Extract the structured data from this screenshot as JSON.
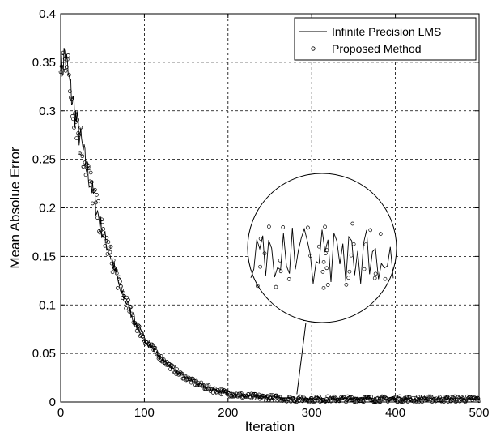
{
  "chart_data": {
    "type": "line",
    "title": "",
    "xlabel": "Iteration",
    "ylabel": "Mean Absolue Error",
    "xlim": [
      0,
      500
    ],
    "ylim": [
      0,
      0.4
    ],
    "xticks": [
      "0",
      "100",
      "200",
      "300",
      "400",
      "500"
    ],
    "yticks": [
      "0",
      "0.05",
      "0.1",
      "0.15",
      "0.2",
      "0.25",
      "0.3",
      "0.35",
      "0.4"
    ],
    "grid": true,
    "legend_position": "top-right",
    "series": [
      {
        "name": "Infinite Precision LMS",
        "marker": "line",
        "color": "#000000",
        "x": [
          0,
          5,
          10,
          20,
          30,
          40,
          50,
          60,
          70,
          80,
          90,
          100,
          120,
          140,
          160,
          180,
          200,
          220,
          240,
          260,
          280,
          300,
          350,
          400,
          450,
          500
        ],
        "y": [
          0.335,
          0.36,
          0.33,
          0.285,
          0.245,
          0.21,
          0.175,
          0.15,
          0.12,
          0.1,
          0.08,
          0.065,
          0.045,
          0.03,
          0.02,
          0.013,
          0.009,
          0.006,
          0.005,
          0.004,
          0.003,
          0.003,
          0.003,
          0.003,
          0.003,
          0.003
        ]
      },
      {
        "name": "Proposed Method",
        "marker": "circle",
        "color": "#000000",
        "x": [
          0,
          5,
          10,
          20,
          30,
          40,
          50,
          60,
          70,
          80,
          90,
          100,
          120,
          140,
          160,
          180,
          200,
          220,
          240,
          260,
          280,
          300,
          350,
          400,
          450,
          500
        ],
        "y": [
          0.335,
          0.37,
          0.33,
          0.285,
          0.245,
          0.21,
          0.175,
          0.15,
          0.12,
          0.1,
          0.08,
          0.065,
          0.045,
          0.03,
          0.02,
          0.013,
          0.009,
          0.006,
          0.005,
          0.004,
          0.003,
          0.003,
          0.003,
          0.003,
          0.003,
          0.003
        ]
      }
    ],
    "annotation": {
      "type": "zoom-inset",
      "target_x": 290,
      "target_y": 0.003
    }
  }
}
